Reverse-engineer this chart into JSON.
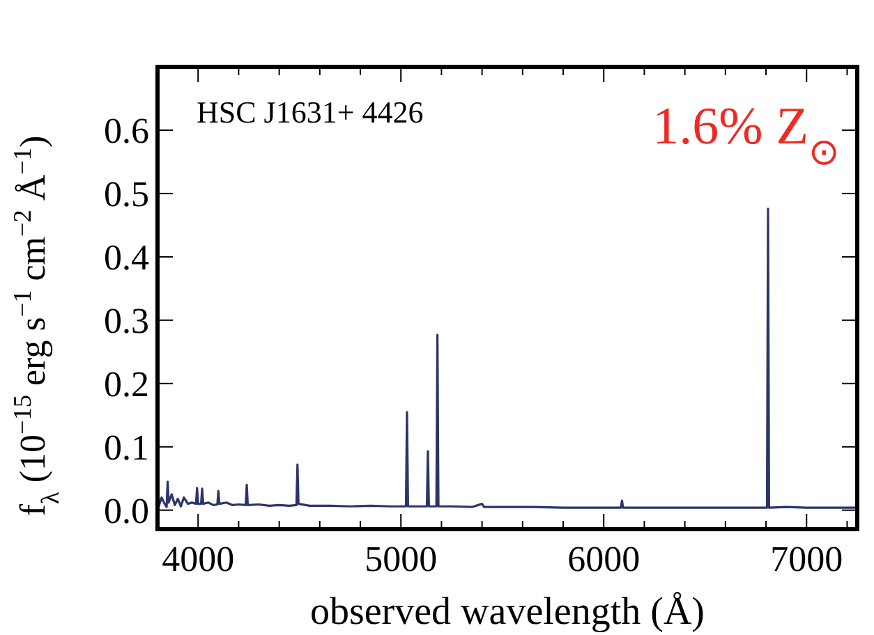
{
  "chart_data": {
    "type": "line",
    "xlabel": "observed wavelength (Å)",
    "ylabel": "f$_{λ}$ (10$^{−15}$ erg s$^{−1}$ cm$^{−2}$ Å$^{−1}$)",
    "annotations": [
      "HSC J1631+ 4426",
      "1.6% Z$_{⊙}$"
    ],
    "xlim": [
      3800,
      7250
    ],
    "ylim": [
      -0.03,
      0.7
    ],
    "xticks": [
      {
        "value": 3800,
        "label": null
      },
      4000,
      {
        "value": 4200,
        "label": null
      },
      {
        "value": 4400,
        "label": null
      },
      {
        "value": 4600,
        "label": null
      },
      {
        "value": 4800,
        "label": null
      },
      5000,
      {
        "value": 5200,
        "label": null
      },
      {
        "value": 5400,
        "label": null
      },
      {
        "value": 5600,
        "label": null
      },
      {
        "value": 5800,
        "label": null
      },
      6000,
      {
        "value": 6200,
        "label": null
      },
      {
        "value": 6400,
        "label": null
      },
      {
        "value": 6600,
        "label": null
      },
      {
        "value": 6800,
        "label": null
      },
      7000,
      {
        "value": 7200,
        "label": null
      }
    ],
    "yticks": [
      {
        "value": 0,
        "label": "0.0"
      },
      0.1,
      0.2,
      0.3,
      0.4,
      0.5,
      0.6
    ],
    "grid": false,
    "marker": "none",
    "line_style": "solid",
    "series": [
      {
        "color": "#2b3568",
        "x": [
          3805,
          3820,
          3835,
          3845,
          3850,
          3855,
          3870,
          3885,
          3900,
          3915,
          3930,
          3950,
          3970,
          3990,
          3995,
          4000,
          4015,
          4020,
          4025,
          4050,
          4075,
          4095,
          4100,
          4105,
          4140,
          4170,
          4200,
          4235,
          4240,
          4245,
          4300,
          4350,
          4400,
          4450,
          4485,
          4490,
          4495,
          4550,
          4650,
          4750,
          4850,
          4950,
          5025,
          5030,
          5035,
          5128,
          5133,
          5138,
          5175,
          5180,
          5185,
          5250,
          5350,
          5400,
          5410,
          5500,
          5650,
          5800,
          5950,
          6085,
          6090,
          6095,
          6250,
          6450,
          6650,
          6805,
          6810,
          6815,
          6900,
          7000,
          7100,
          7240
        ],
        "values": [
          0.005,
          0.02,
          0.01,
          0.005,
          0.045,
          0.012,
          0.025,
          0.008,
          0.018,
          0.006,
          0.02,
          0.01,
          0.012,
          0.01,
          0.035,
          0.01,
          0.01,
          0.034,
          0.01,
          0.012,
          0.008,
          0.009,
          0.03,
          0.01,
          0.012,
          0.008,
          0.009,
          0.008,
          0.04,
          0.008,
          0.009,
          0.007,
          0.008,
          0.007,
          0.008,
          0.072,
          0.01,
          0.007,
          0.007,
          0.006,
          0.007,
          0.006,
          0.006,
          0.155,
          0.006,
          0.006,
          0.093,
          0.006,
          0.006,
          0.277,
          0.006,
          0.006,
          0.005,
          0.01,
          0.005,
          0.005,
          0.005,
          0.004,
          0.004,
          0.004,
          0.015,
          0.004,
          0.004,
          0.004,
          0.004,
          0.004,
          0.476,
          0.004,
          0.005,
          0.004,
          0.004,
          0.004
        ]
      }
    ]
  }
}
